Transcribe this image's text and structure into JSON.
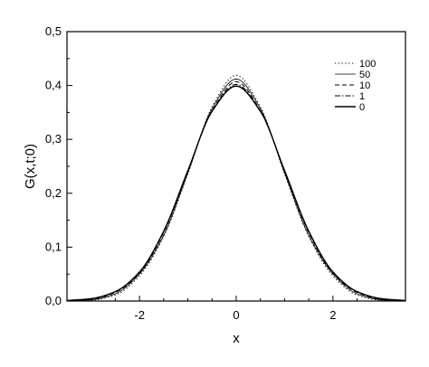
{
  "chart_data": {
    "type": "line",
    "xlabel": "x",
    "ylabel": "G(x,t;0)",
    "xlim": [
      -3.5,
      3.5
    ],
    "ylim": [
      0.0,
      0.5
    ],
    "x_ticks": [
      -2,
      0,
      2
    ],
    "x_tick_labels": [
      "-2",
      "0",
      "2"
    ],
    "y_ticks": [
      0.0,
      0.1,
      0.2,
      0.3,
      0.4,
      0.5
    ],
    "y_tick_labels": [
      "0,0",
      "0,1",
      "0,2",
      "0,3",
      "0,4",
      "0,5"
    ],
    "grid": false,
    "legend_position": "top-right",
    "x": [
      -3.5,
      -3.0,
      -2.5,
      -2.0,
      -1.5,
      -1.0,
      -0.5,
      0.0,
      0.5,
      1.0,
      1.5,
      2.0,
      2.5,
      3.0,
      3.5
    ],
    "series": [
      {
        "name": "100",
        "dash": "dot",
        "values": [
          0.0001,
          0.0014,
          0.0111,
          0.0467,
          0.12,
          0.236,
          0.36,
          0.419,
          0.36,
          0.236,
          0.12,
          0.0467,
          0.0111,
          0.0014,
          0.0001
        ]
      },
      {
        "name": "50",
        "dash": "solid-thin",
        "values": [
          0.0002,
          0.0022,
          0.0135,
          0.0502,
          0.122,
          0.238,
          0.357,
          0.412,
          0.357,
          0.238,
          0.122,
          0.0502,
          0.0135,
          0.0022,
          0.0002
        ]
      },
      {
        "name": "10",
        "dash": "dash",
        "values": [
          0.0004,
          0.0033,
          0.016,
          0.052,
          0.127,
          0.241,
          0.353,
          0.407,
          0.353,
          0.241,
          0.127,
          0.052,
          0.016,
          0.0033,
          0.0004
        ]
      },
      {
        "name": "1",
        "dash": "dashdot",
        "values": [
          0.0006,
          0.004,
          0.0172,
          0.0535,
          0.129,
          0.242,
          0.352,
          0.402,
          0.352,
          0.242,
          0.129,
          0.0535,
          0.0172,
          0.004,
          0.0006
        ]
      },
      {
        "name": "0",
        "dash": "solid",
        "values": [
          0.0009,
          0.0044,
          0.0175,
          0.054,
          0.1295,
          0.242,
          0.3521,
          0.3989,
          0.3521,
          0.242,
          0.1295,
          0.054,
          0.0175,
          0.0044,
          0.0009
        ]
      }
    ]
  }
}
